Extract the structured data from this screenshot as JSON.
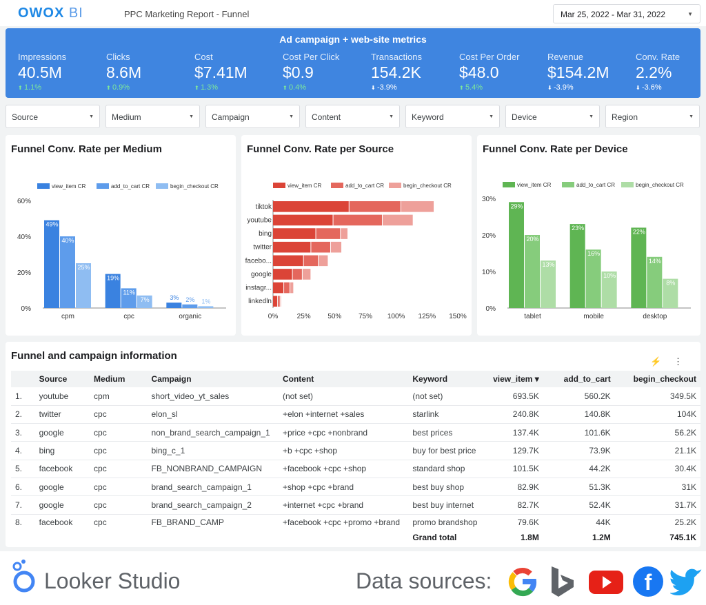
{
  "header": {
    "logo_main": "OWOX",
    "logo_suffix": "BI",
    "report_title": "PPC Marketing Report - Funnel",
    "date_range": "Mar 25, 2022 - Mar 31, 2022"
  },
  "kpi_panel": {
    "title": "Ad campaign + web-site metrics",
    "items": [
      {
        "label": "Impressions",
        "value": "40.5M",
        "delta": "1.1%",
        "direction": "up"
      },
      {
        "label": "Clicks",
        "value": "8.6M",
        "delta": "0.9%",
        "direction": "up"
      },
      {
        "label": "Cost",
        "value": "$7.41M",
        "delta": "1.3%",
        "direction": "up"
      },
      {
        "label": "Cost Per Click",
        "value": "$0.9",
        "delta": "0.4%",
        "direction": "up"
      },
      {
        "label": "Transactions",
        "value": "154.2K",
        "delta": "-3.9%",
        "direction": "down"
      },
      {
        "label": "Cost Per Order",
        "value": "$48.0",
        "delta": "5.4%",
        "direction": "up"
      },
      {
        "label": "Revenue",
        "value": "$154.2M",
        "delta": "-3.9%",
        "direction": "down"
      },
      {
        "label": "Conv. Rate",
        "value": "2.2%",
        "delta": "-3.6%",
        "direction": "down"
      }
    ]
  },
  "filters": [
    "Source",
    "Medium",
    "Campaign",
    "Content",
    "Keyword",
    "Device",
    "Region"
  ],
  "chart_data": [
    {
      "type": "bar",
      "title": "Funnel Conv. Rate per Medium",
      "orientation": "vertical",
      "categories": [
        "cpm",
        "cpc",
        "organic"
      ],
      "series": [
        {
          "name": "view_item CR",
          "color": "#3a82e0",
          "values": [
            49,
            19,
            3
          ]
        },
        {
          "name": "add_to_cart CR",
          "color": "#5e9ceb",
          "values": [
            40,
            11,
            2
          ]
        },
        {
          "name": "begin_checkout CR",
          "color": "#8fbdf2",
          "values": [
            25,
            7,
            1
          ]
        }
      ],
      "ylim": [
        0,
        60
      ],
      "yticks": [
        "0%",
        "20%",
        "40%",
        "60%"
      ],
      "legend": "top"
    },
    {
      "type": "bar",
      "title": "Funnel Conv. Rate per Source",
      "orientation": "horizontal-stacked",
      "categories": [
        "tiktok",
        "youtube",
        "bing",
        "twitter",
        "facebo...",
        "google",
        "instagr...",
        "linkedln"
      ],
      "series": [
        {
          "name": "view_item CR",
          "color": "#db4437",
          "values": [
            62,
            49,
            35,
            31,
            25,
            16,
            9,
            4
          ]
        },
        {
          "name": "add_to_cart CR",
          "color": "#e4675d",
          "values": [
            42,
            40,
            20,
            16,
            12,
            8,
            5,
            2
          ]
        },
        {
          "name": "begin_checkout CR",
          "color": "#eea09a",
          "values": [
            27,
            25,
            6,
            9,
            8,
            7,
            3,
            1
          ]
        }
      ],
      "xlim": [
        0,
        150
      ],
      "xticks": [
        "0%",
        "25%",
        "50%",
        "75%",
        "100%",
        "125%",
        "150%"
      ],
      "legend": "top"
    },
    {
      "type": "bar",
      "title": "Funnel Conv. Rate per Device",
      "orientation": "vertical",
      "categories": [
        "tablet",
        "mobile",
        "desktop"
      ],
      "series": [
        {
          "name": "view_item CR",
          "color": "#5fb553",
          "values": [
            29,
            23,
            22
          ]
        },
        {
          "name": "add_to_cart CR",
          "color": "#86cc7c",
          "values": [
            20,
            16,
            14
          ]
        },
        {
          "name": "begin_checkout CR",
          "color": "#aedda6",
          "values": [
            13,
            10,
            8
          ]
        }
      ],
      "ylim": [
        0,
        30
      ],
      "yticks": [
        "0%",
        "10%",
        "20%",
        "30%"
      ],
      "legend": "top"
    }
  ],
  "table": {
    "title": "Funnel and campaign information",
    "tool_icons": [
      "⚡",
      "⋮"
    ],
    "columns": [
      "Source",
      "Medium",
      "Campaign",
      "Content",
      "Keyword",
      "view_item ▾",
      "add_to_cart",
      "begin_checkout"
    ],
    "rows": [
      [
        "1.",
        "youtube",
        "cpm",
        "short_video_yt_sales",
        "(not set)",
        "(not set)",
        "693.5K",
        "560.2K",
        "349.5K"
      ],
      [
        "2.",
        "twitter",
        "cpc",
        "elon_sl",
        "+elon +internet +sales",
        "starlink",
        "240.8K",
        "140.8K",
        "104K"
      ],
      [
        "3.",
        "google",
        "cpc",
        "non_brand_search_campaign_1",
        "+price +cpc +nonbrand",
        "best prices",
        "137.4K",
        "101.6K",
        "56.2K"
      ],
      [
        "4.",
        "bing",
        "cpc",
        "bing_c_1",
        "+b +cpc +shop",
        "buy for best price",
        "129.7K",
        "73.9K",
        "21.1K"
      ],
      [
        "5.",
        "facebook",
        "cpc",
        "FB_NONBRAND_CAMPAIGN",
        "+facebook +cpc +shop",
        "standard shop",
        "101.5K",
        "44.2K",
        "30.4K"
      ],
      [
        "6.",
        "google",
        "cpc",
        "brand_search_campaign_1",
        "+shop +cpc +brand",
        "best buy shop",
        "82.9K",
        "51.3K",
        "31K"
      ],
      [
        "7.",
        "google",
        "cpc",
        "brand_search_campaign_2",
        "+internet +cpc +brand",
        "best buy internet",
        "82.7K",
        "52.4K",
        "31.7K"
      ],
      [
        "8.",
        "facebook",
        "cpc",
        "FB_BRAND_CAMP",
        "+facebook +cpc +promo +brand",
        "promo brandshop",
        "79.6K",
        "44K",
        "25.2K"
      ]
    ],
    "total_label": "Grand total",
    "totals": [
      "1.8M",
      "1.2M",
      "745.1K"
    ]
  },
  "footer": {
    "brand": "Looker Studio",
    "data_sources_label": "Data sources:",
    "source_icons": [
      "google-icon",
      "bing-icon",
      "youtube-icon",
      "facebook-icon",
      "twitter-icon"
    ],
    "facebook_glyph": "f"
  }
}
